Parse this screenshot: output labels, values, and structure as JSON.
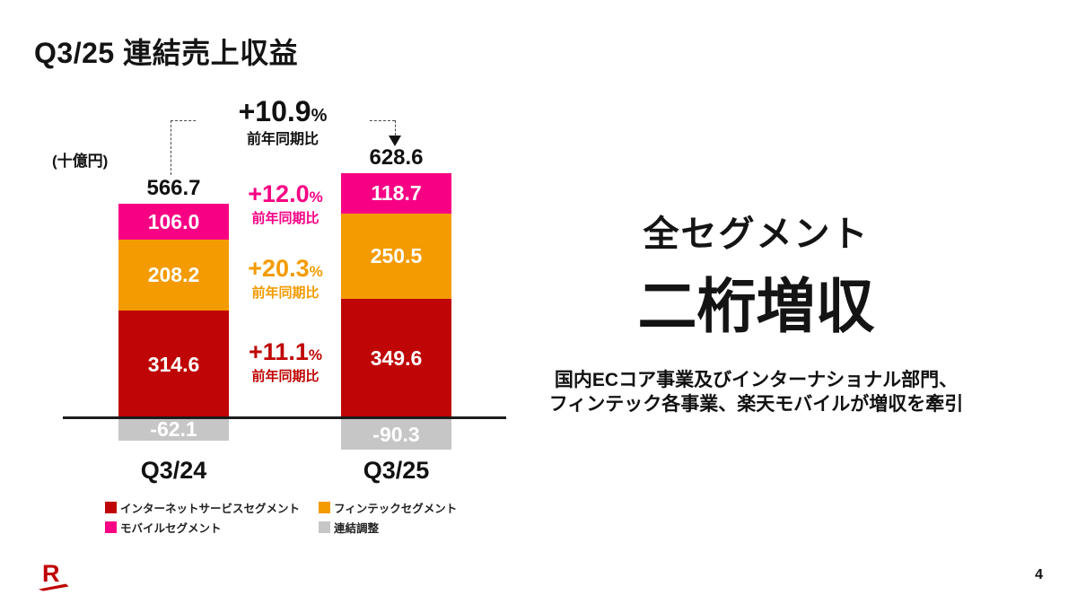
{
  "slide": {
    "title": "Q3/25 連結売上収益",
    "page_number": "4",
    "brand": {
      "logo_letter": "R",
      "color": "#BF0000"
    }
  },
  "chart_data": {
    "type": "bar",
    "stacked": true,
    "unit_label": "(十億円)",
    "categories": [
      "Q3/24",
      "Q3/25"
    ],
    "series": [
      {
        "key": "internet-services",
        "name": "インターネットサービスセグメント",
        "color": "#BF0505",
        "values": [
          314.6,
          349.6
        ],
        "labels": [
          "314.6",
          "349.6"
        ]
      },
      {
        "key": "fintech",
        "name": "フィンテックセグメント",
        "color": "#F39B00",
        "values": [
          208.2,
          250.5
        ],
        "labels": [
          "208.2",
          "250.5"
        ]
      },
      {
        "key": "mobile",
        "name": "モバイルセグメント",
        "color": "#F80084",
        "values": [
          106.0,
          118.7
        ],
        "labels": [
          "106.0",
          "118.7"
        ]
      },
      {
        "key": "adjustments",
        "name": "連結調整",
        "color": "#C6C6C6",
        "values": [
          -62.1,
          -90.3
        ],
        "labels": [
          "-62.1",
          "-90.3"
        ]
      }
    ],
    "totals": [
      "566.7",
      "628.6"
    ],
    "total_growth": {
      "value": "+10.9",
      "suffix": "%",
      "label": "前年同期比"
    },
    "segment_growth": [
      {
        "value": "+12.0",
        "suffix": "%",
        "label": "前年同期比",
        "color": "#F80084"
      },
      {
        "value": "+20.3",
        "suffix": "%",
        "label": "前年同期比",
        "color": "#F39B00"
      },
      {
        "value": "+11.1",
        "suffix": "%",
        "label": "前年同期比",
        "color": "#BF0505"
      }
    ]
  },
  "right_panel": {
    "headline_line1": "全セグメント",
    "headline_line2": "二桁増収",
    "body_line1": "国内ECコア事業及びインターナショナル部門、",
    "body_line2": "フィンテック各事業、楽天モバイルが増収を牽引",
    "accent_color": "#BF0000"
  }
}
